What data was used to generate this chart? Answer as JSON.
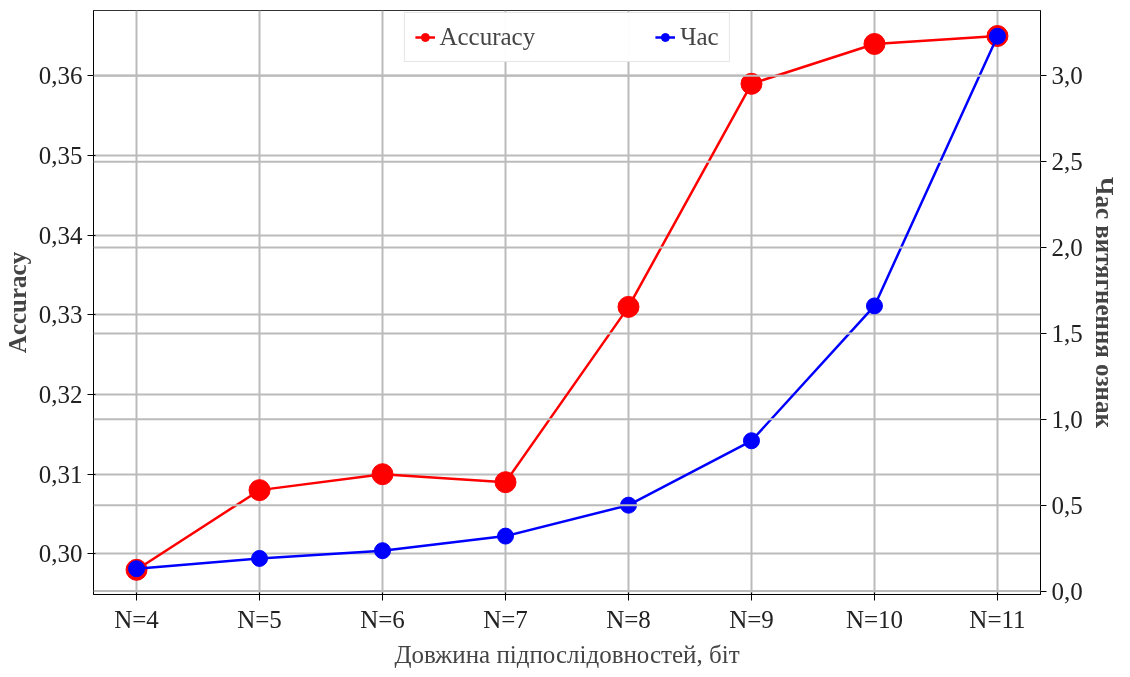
{
  "chart_data": {
    "type": "line",
    "xlabel": "Довжина підпослідовностей, біт",
    "ylabel": "Accuracy",
    "y2label": "Час витягнення ознак",
    "categories": [
      "N=4",
      "N=5",
      "N=6",
      "N=7",
      "N=8",
      "N=9",
      "N=10",
      "N=11"
    ],
    "series": [
      {
        "name": "Accuracy",
        "color": "#ff0000",
        "values": [
          0.298,
          0.308,
          0.31,
          0.309,
          0.331,
          0.359,
          0.364,
          0.365
        ]
      },
      {
        "name": "Час",
        "color": "#0000ff",
        "axis": "y2",
        "values": [
          0.13,
          0.19,
          0.235,
          0.32,
          0.5,
          0.875,
          1.66,
          3.23
        ]
      }
    ],
    "ylim": [
      0.2949,
      0.3682
    ],
    "yticks": [
      {
        "value": 0.3,
        "label": "0,30"
      },
      {
        "value": 0.31,
        "label": "0,31"
      },
      {
        "value": 0.32,
        "label": "0,32"
      },
      {
        "value": 0.33,
        "label": "0,33"
      },
      {
        "value": 0.34,
        "label": "0,34"
      },
      {
        "value": 0.35,
        "label": "0,35"
      },
      {
        "value": 0.36,
        "label": "0,36"
      }
    ],
    "y2lim": [
      -0.02,
      3.38
    ],
    "y2ticks": [
      {
        "value": 0.0,
        "label": "0,0"
      },
      {
        "value": 0.5,
        "label": "0,5"
      },
      {
        "value": 1.0,
        "label": "1,0"
      },
      {
        "value": 1.5,
        "label": "1,5"
      },
      {
        "value": 2.0,
        "label": "2,0"
      },
      {
        "value": 2.5,
        "label": "2,5"
      },
      {
        "value": 3.0,
        "label": "3,0"
      }
    ],
    "grid": true,
    "legend": "top",
    "marker": "circle",
    "line_style": "solid"
  }
}
